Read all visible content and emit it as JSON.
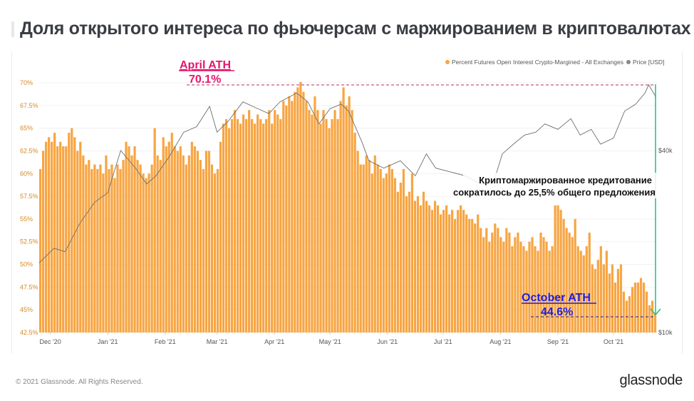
{
  "title": "Доля открытого интереса по фьючерсам с маржированием в криптовалютах",
  "footer": "© 2021 Glassnode. All Rights Reserved.",
  "logo": "glassnode",
  "chart_data": {
    "type": "bar",
    "title": "Доля открытого интереса по фьючерсам с маржированием в криптовалютах",
    "series": [
      {
        "name": "Percent Futures Open Interest Crypto-Margined - All Exchanges",
        "color": "#f7a543",
        "unit": "%",
        "values": [
          60.5,
          62.5,
          63.5,
          64,
          63.5,
          64.5,
          63,
          63.5,
          63,
          63,
          64.5,
          65,
          64,
          62.5,
          63.5,
          62,
          61,
          61.5,
          60.5,
          61,
          60.5,
          61,
          60,
          62,
          60.5,
          61,
          59.5,
          61,
          60.5,
          61.5,
          63.5,
          63,
          62,
          63,
          61.5,
          61,
          60,
          59.5,
          60,
          61,
          65,
          62,
          61.5,
          64,
          63,
          63.5,
          64.5,
          63,
          62.5,
          63,
          62,
          61,
          62,
          63.5,
          63,
          62.5,
          61.5,
          60.5,
          62.5,
          62.5,
          61,
          60,
          60.5,
          63.5,
          65.5,
          66,
          65,
          66,
          67,
          66,
          65.5,
          66.5,
          66,
          67,
          66,
          65.5,
          66.5,
          66,
          65.5,
          66,
          67,
          65.5,
          67,
          66.5,
          66,
          68,
          67.5,
          68.5,
          68,
          69,
          69.5,
          70.1,
          69,
          68,
          67,
          66.5,
          68.5,
          67,
          65.5,
          67,
          66,
          65,
          66,
          67,
          66,
          68,
          69.5,
          67.5,
          68.5,
          67,
          64.5,
          62.5,
          61,
          61,
          62,
          61.5,
          60,
          62,
          61,
          60.5,
          59.5,
          60,
          61,
          60.5,
          59.5,
          58,
          59,
          60.5,
          57.5,
          58,
          60,
          57,
          57.5,
          56.5,
          58,
          57,
          56.5,
          56,
          57,
          56.5,
          55.5,
          56,
          56.5,
          55.5,
          56,
          55,
          56,
          56.5,
          56,
          55.5,
          55,
          55,
          54.5,
          55.5,
          54,
          53,
          54,
          52.5,
          53.5,
          54.5,
          54,
          53,
          52.5,
          54,
          53.5,
          52,
          53,
          53.5,
          52.5,
          52,
          51.5,
          52.5,
          53,
          52,
          51.5,
          53.5,
          53,
          52.5,
          51.5,
          52,
          56.5,
          56.5,
          56,
          55,
          54,
          53.5,
          53,
          55,
          52,
          51.5,
          51,
          52,
          53.5,
          50,
          49.5,
          50.5,
          52,
          50,
          51.5,
          49,
          50,
          48,
          49.5,
          50,
          47,
          46,
          46.5,
          47.5,
          48,
          48,
          48.5,
          48,
          47,
          45.5,
          46,
          44.6
        ]
      },
      {
        "name": "Price [USD]",
        "color": "#888888",
        "type": "line",
        "scale": "log",
        "points": [
          [
            0,
            17000
          ],
          [
            8,
            19000
          ],
          [
            14,
            18500
          ],
          [
            22,
            23000
          ],
          [
            30,
            27000
          ],
          [
            37,
            29000
          ],
          [
            44,
            40000
          ],
          [
            52,
            35000
          ],
          [
            58,
            31000
          ],
          [
            63,
            33000
          ],
          [
            70,
            38000
          ],
          [
            78,
            46000
          ],
          [
            85,
            48000
          ],
          [
            92,
            56000
          ],
          [
            96,
            46000
          ],
          [
            102,
            50000
          ],
          [
            110,
            58000
          ],
          [
            118,
            55000
          ],
          [
            124,
            53000
          ],
          [
            130,
            58000
          ],
          [
            139,
            62000
          ],
          [
            145,
            58000
          ],
          [
            151,
            49000
          ],
          [
            157,
            55000
          ],
          [
            163,
            57000
          ],
          [
            167,
            54000
          ],
          [
            174,
            43000
          ],
          [
            178,
            37000
          ],
          [
            186,
            35000
          ],
          [
            195,
            37000
          ],
          [
            203,
            33000
          ],
          [
            209,
            39000
          ],
          [
            214,
            35000
          ],
          [
            222,
            34000
          ],
          [
            230,
            33000
          ],
          [
            238,
            31000
          ],
          [
            245,
            31000
          ],
          [
            250,
            39000
          ],
          [
            256,
            42000
          ],
          [
            262,
            45000
          ],
          [
            268,
            46000
          ],
          [
            273,
            49000
          ],
          [
            280,
            47000
          ],
          [
            287,
            51000
          ],
          [
            292,
            45000
          ],
          [
            298,
            47000
          ],
          [
            303,
            42000
          ],
          [
            310,
            44000
          ],
          [
            316,
            54000
          ],
          [
            322,
            57000
          ],
          [
            327,
            62000
          ],
          [
            329,
            66000
          ],
          [
            333,
            60000
          ]
        ]
      }
    ],
    "y_ticks": [
      "70%",
      "67.5%",
      "65%",
      "62.5%",
      "60%",
      "57.5%",
      "55%",
      "52.5%",
      "50%",
      "47.5%",
      "45%",
      "42.5%"
    ],
    "ylim": [
      42.5,
      70
    ],
    "y2_ticks": [
      "$40k",
      "$10k"
    ],
    "x_ticks": [
      "Dec '20",
      "Jan '21",
      "Feb '21",
      "Mar '21",
      "Apr '21",
      "May '21",
      "Jun '21",
      "Jul '21",
      "Aug '21",
      "Sep '21",
      "Oct '21"
    ],
    "legend_position": "top-right",
    "annotations": {
      "april_title": "April ATH",
      "april_value": "70.1%",
      "october_title": "October ATH",
      "october_value": "44.6%",
      "note_line1": "Криптомаржированное кредитование",
      "note_line2": "сократилось до 25,5% общего предложения",
      "april_color": "#e5166f",
      "october_color": "#1f1fe0",
      "arrow_color": "#1fbf7a"
    }
  }
}
